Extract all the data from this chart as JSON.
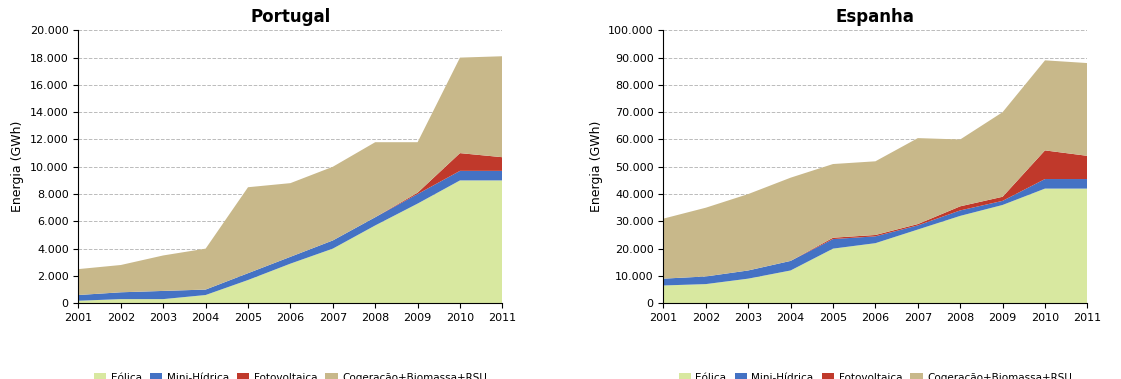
{
  "years": [
    2001,
    2002,
    2003,
    2004,
    2005,
    2006,
    2007,
    2008,
    2009,
    2010,
    2011
  ],
  "portugal": {
    "title": "Portugal",
    "ylabel": "Energia (GWh)",
    "ylim": [
      0,
      20000
    ],
    "yticks": [
      0,
      2000,
      4000,
      6000,
      8000,
      10000,
      12000,
      14000,
      16000,
      18000,
      20000
    ],
    "eolica": [
      180,
      300,
      300,
      600,
      1700,
      2900,
      4000,
      5700,
      7300,
      9000,
      9000
    ],
    "mini_hidrica": [
      420,
      500,
      600,
      400,
      500,
      500,
      600,
      600,
      700,
      700,
      700
    ],
    "fotovoltaica": [
      0,
      0,
      0,
      0,
      0,
      0,
      0,
      0,
      100,
      1300,
      1000
    ],
    "cogen_bio": [
      1900,
      2000,
      2600,
      3000,
      6300,
      5400,
      5400,
      5500,
      3700,
      7000,
      7400
    ]
  },
  "espanha": {
    "title": "Espanha",
    "ylabel": "Energia (GWh)",
    "ylim": [
      0,
      100000
    ],
    "yticks": [
      0,
      10000,
      20000,
      30000,
      40000,
      50000,
      60000,
      70000,
      80000,
      90000,
      100000
    ],
    "eolica": [
      6500,
      7000,
      9000,
      12000,
      20000,
      22000,
      27000,
      32000,
      36000,
      42000,
      42000
    ],
    "mini_hidrica": [
      2500,
      2800,
      3000,
      3500,
      3500,
      2500,
      1500,
      2000,
      1500,
      3500,
      3500
    ],
    "fotovoltaica": [
      0,
      0,
      0,
      0,
      500,
      500,
      500,
      1500,
      1500,
      10500,
      8500
    ],
    "cogen_bio": [
      22000,
      25200,
      28000,
      30500,
      27000,
      27000,
      31500,
      24500,
      31000,
      33000,
      34000
    ]
  },
  "colors": {
    "eolica": "#d8e8a0",
    "mini_hidrica": "#4472c4",
    "fotovoltaica": "#c0392b",
    "cogen_bio": "#c8b88a"
  },
  "legend_labels": [
    "Eólica",
    "Mini-Hídrica",
    "Fotovoltaica",
    "Cogeração+Biomassa+RSU"
  ]
}
